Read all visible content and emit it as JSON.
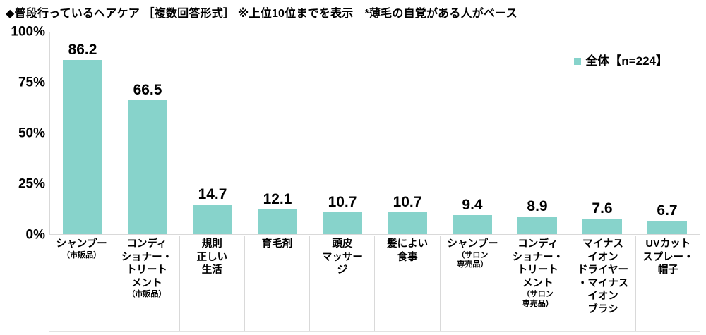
{
  "colors": {
    "bar": "#87d3cb",
    "plot_border": "#d9d9d9",
    "text": "#000000"
  },
  "chart_data": {
    "type": "bar",
    "title": "◆普段行っているヘアケア ［複数回答形式］ ※上位10位までを表示　*薄毛の自覚がある人がベース",
    "xlabel": "",
    "ylabel": "",
    "ylim": [
      0,
      100
    ],
    "grid": false,
    "yticks": [
      {
        "label": "0%",
        "value": 0
      },
      {
        "label": "25%",
        "value": 25
      },
      {
        "label": "50%",
        "value": 50
      },
      {
        "label": "75%",
        "value": 75
      },
      {
        "label": "100%",
        "value": 100
      }
    ],
    "legend": {
      "label": "全体【n=224】",
      "position": "top-right"
    },
    "categories": [
      {
        "label": "シャンプー（市販品）",
        "value": 86.2,
        "lines": [
          {
            "text": "シャンプー",
            "small": false
          },
          {
            "text": "（市販品）",
            "small": true
          }
        ]
      },
      {
        "label": "コンディショナー・トリートメント（市販品）",
        "value": 66.5,
        "lines": [
          {
            "text": "コンディ",
            "small": false
          },
          {
            "text": "ショナー・",
            "small": false
          },
          {
            "text": "トリート",
            "small": false
          },
          {
            "text": "メント",
            "small": false
          },
          {
            "text": "（市販品）",
            "small": true
          }
        ]
      },
      {
        "label": "規則正しい生活",
        "value": 14.7,
        "lines": [
          {
            "text": "規則",
            "small": false
          },
          {
            "text": "正しい",
            "small": false
          },
          {
            "text": "生活",
            "small": false
          }
        ]
      },
      {
        "label": "育毛剤",
        "value": 12.1,
        "lines": [
          {
            "text": "育毛剤",
            "small": false
          }
        ]
      },
      {
        "label": "頭皮マッサージ",
        "value": 10.7,
        "lines": [
          {
            "text": "頭皮",
            "small": false
          },
          {
            "text": "マッサー",
            "small": false
          },
          {
            "text": "ジ",
            "small": false
          }
        ]
      },
      {
        "label": "髪によい食事",
        "value": 10.7,
        "lines": [
          {
            "text": "髪によい",
            "small": false
          },
          {
            "text": "食事",
            "small": false
          }
        ]
      },
      {
        "label": "シャンプー（サロン専売品）",
        "value": 9.4,
        "lines": [
          {
            "text": "シャンプー",
            "small": false
          },
          {
            "text": "（サロン",
            "small": true
          },
          {
            "text": "専売品）",
            "small": true
          }
        ]
      },
      {
        "label": "コンディショナー・トリートメント（サロン専売品）",
        "value": 8.9,
        "lines": [
          {
            "text": "コンディ",
            "small": false
          },
          {
            "text": "ショナー・",
            "small": false
          },
          {
            "text": "トリート",
            "small": false
          },
          {
            "text": "メント",
            "small": false
          },
          {
            "text": "（サロン",
            "small": true
          },
          {
            "text": "専売品）",
            "small": true
          }
        ]
      },
      {
        "label": "マイナスイオンドライヤー・マイナスイオンブラシ",
        "value": 7.6,
        "lines": [
          {
            "text": "マイナス",
            "small": false
          },
          {
            "text": "イオン",
            "small": false
          },
          {
            "text": "ドライヤー",
            "small": false
          },
          {
            "text": "・マイナス",
            "small": false
          },
          {
            "text": "イオン",
            "small": false
          },
          {
            "text": "ブラシ",
            "small": false
          }
        ]
      },
      {
        "label": "UVカットスプレー・帽子",
        "value": 6.7,
        "lines": [
          {
            "text": "UVカット",
            "small": false
          },
          {
            "text": "スプレー・",
            "small": false
          },
          {
            "text": "帽子",
            "small": false
          }
        ]
      }
    ]
  }
}
